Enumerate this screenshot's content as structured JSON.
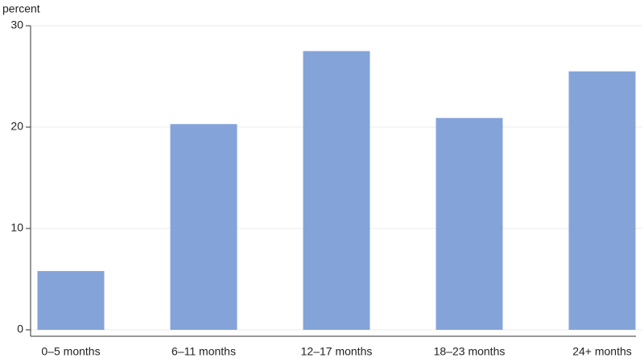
{
  "chart_data": {
    "type": "bar",
    "y_label": "percent",
    "categories": [
      "0–5 months",
      "6–11 months",
      "12–17 months",
      "18–23 months",
      "24+ months"
    ],
    "values": [
      5.8,
      20.3,
      27.5,
      20.9,
      25.5
    ],
    "color": "#84a4d9",
    "ylim": [
      0,
      30
    ],
    "yticks": [
      0,
      10,
      20,
      30
    ],
    "grid": true
  }
}
